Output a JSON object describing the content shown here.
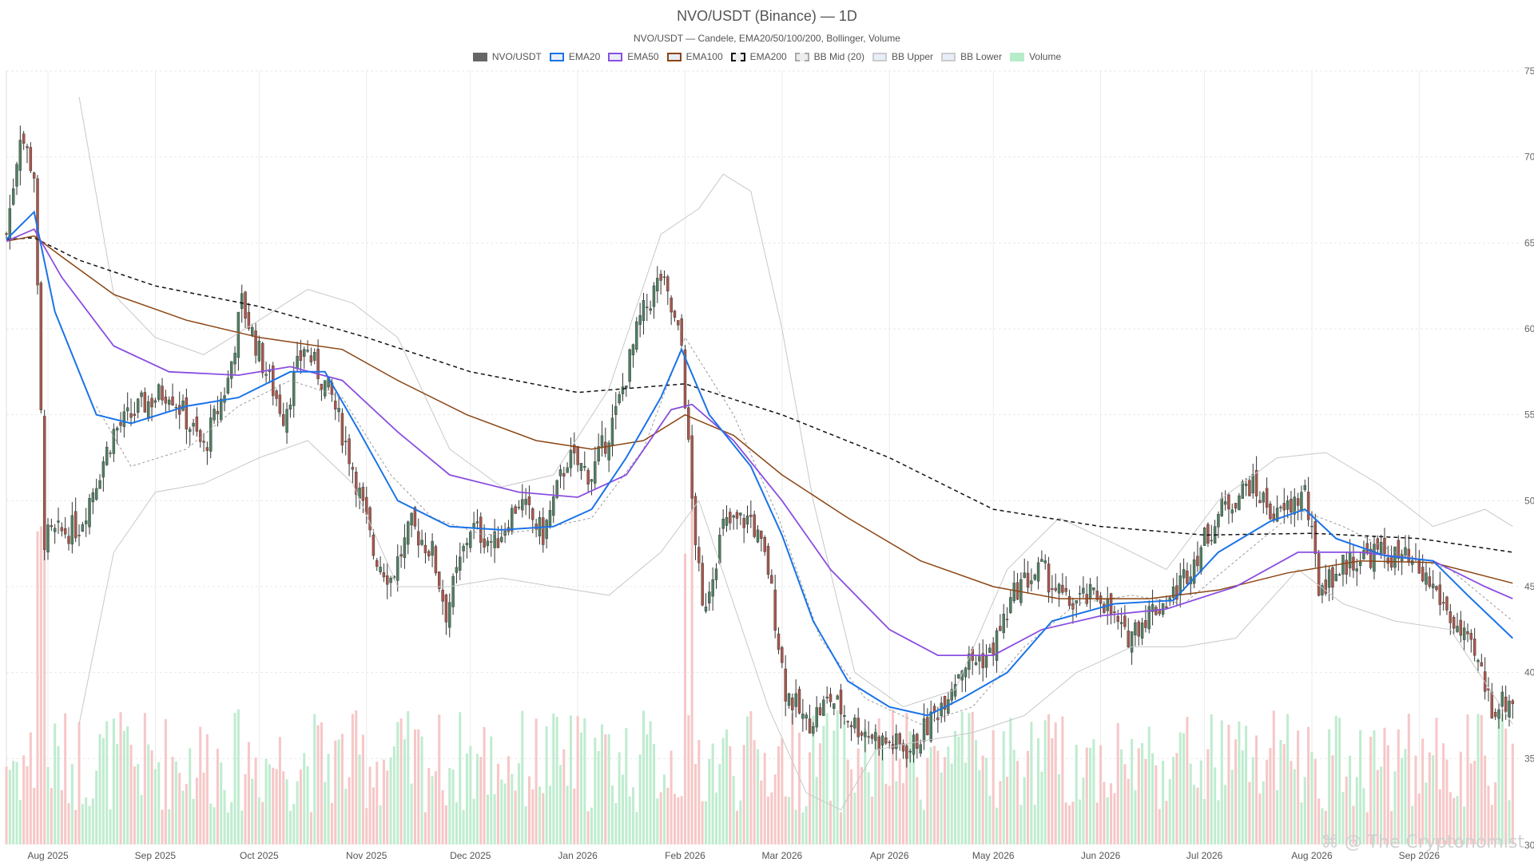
{
  "chart_title": "NVO/USDT (Binance) — 1D",
  "chart_subtitle": "NVO/USDT — Candele, EMA20/50/100/200, Bollinger, Volume",
  "watermark": "⌘ @ The Cryptonomist",
  "legend": [
    {
      "label": "NVO/USDT",
      "color": "#666666",
      "style": "solid-fill"
    },
    {
      "label": "EMA20",
      "color": "#1a73e8",
      "style": "line"
    },
    {
      "label": "EMA50",
      "color": "#8a4fe0",
      "style": "line"
    },
    {
      "label": "EMA100",
      "color": "#8b4513",
      "style": "line"
    },
    {
      "label": "EMA200",
      "color": "#111111",
      "style": "dashed"
    },
    {
      "label": "BB Mid (20)",
      "color": "#aaaaaa",
      "style": "dashed"
    },
    {
      "label": "BB Upper",
      "color": "#cccccc",
      "style": "line"
    },
    {
      "label": "BB Lower",
      "color": "#cccccc",
      "style": "line"
    },
    {
      "label": "Volume",
      "color": "#b6ecc8",
      "style": "solid-fill"
    }
  ],
  "chart_data": {
    "type": "candlestick",
    "y_axis": {
      "position": "right",
      "min": 30,
      "max": 75,
      "ticks": [
        35,
        40,
        45,
        50,
        55,
        60,
        65,
        70,
        75
      ]
    },
    "x_axis": {
      "ticks": [
        "Aug 2025",
        "Sep 2025",
        "Oct 2025",
        "Nov 2025",
        "Dec 2025",
        "Jan 2026",
        "Feb 2026",
        "Mar 2026",
        "Apr 2026",
        "May 2026",
        "Jun 2026",
        "Jul 2026",
        "Aug 2026",
        "Sep 2026"
      ]
    },
    "grid": true,
    "colors": {
      "up": "#4f7f61",
      "down": "#a8574c",
      "vol_up": "#bfeccf",
      "vol_down": "#f6c7c7"
    },
    "price_path": [
      {
        "x": "2025-07-20",
        "y": 65.5
      },
      {
        "x": "2025-07-24",
        "y": 71.5
      },
      {
        "x": "2025-07-28",
        "y": 69
      },
      {
        "x": "2025-07-31",
        "y": 47.8
      },
      {
        "x": "2025-08-10",
        "y": 48.5
      },
      {
        "x": "2025-08-20",
        "y": 54
      },
      {
        "x": "2025-08-28",
        "y": 55.5
      },
      {
        "x": "2025-09-05",
        "y": 56.5
      },
      {
        "x": "2025-09-15",
        "y": 53
      },
      {
        "x": "2025-09-22",
        "y": 57
      },
      {
        "x": "2025-09-26",
        "y": 61.5
      },
      {
        "x": "2025-10-02",
        "y": 58
      },
      {
        "x": "2025-10-08",
        "y": 55
      },
      {
        "x": "2025-10-14",
        "y": 59
      },
      {
        "x": "2025-10-22",
        "y": 56
      },
      {
        "x": "2025-10-28",
        "y": 52
      },
      {
        "x": "2025-11-03",
        "y": 47
      },
      {
        "x": "2025-11-08",
        "y": 45.5
      },
      {
        "x": "2025-11-14",
        "y": 48.5
      },
      {
        "x": "2025-11-20",
        "y": 47
      },
      {
        "x": "2025-11-24",
        "y": 43.5
      },
      {
        "x": "2025-12-01",
        "y": 48.5
      },
      {
        "x": "2025-12-08",
        "y": 47.5
      },
      {
        "x": "2025-12-15",
        "y": 50
      },
      {
        "x": "2025-12-22",
        "y": 48
      },
      {
        "x": "2025-12-29",
        "y": 52.5
      },
      {
        "x": "2026-01-05",
        "y": 51.5
      },
      {
        "x": "2026-01-12",
        "y": 55
      },
      {
        "x": "2026-01-19",
        "y": 60.5
      },
      {
        "x": "2026-01-25",
        "y": 63
      },
      {
        "x": "2026-01-31",
        "y": 59
      },
      {
        "x": "2026-02-03",
        "y": 50
      },
      {
        "x": "2026-02-06",
        "y": 43.5
      },
      {
        "x": "2026-02-12",
        "y": 48.5
      },
      {
        "x": "2026-02-20",
        "y": 49
      },
      {
        "x": "2026-02-25",
        "y": 46
      },
      {
        "x": "2026-03-02",
        "y": 39
      },
      {
        "x": "2026-03-08",
        "y": 37
      },
      {
        "x": "2026-03-15",
        "y": 38.5
      },
      {
        "x": "2026-03-22",
        "y": 37
      },
      {
        "x": "2026-03-30",
        "y": 36
      },
      {
        "x": "2026-04-07",
        "y": 35.5
      },
      {
        "x": "2026-04-14",
        "y": 37.5
      },
      {
        "x": "2026-04-22",
        "y": 40.5
      },
      {
        "x": "2026-04-30",
        "y": 41
      },
      {
        "x": "2026-05-08",
        "y": 45
      },
      {
        "x": "2026-05-15",
        "y": 46
      },
      {
        "x": "2026-05-22",
        "y": 44
      },
      {
        "x": "2026-06-01",
        "y": 44.5
      },
      {
        "x": "2026-06-08",
        "y": 42
      },
      {
        "x": "2026-06-15",
        "y": 43.5
      },
      {
        "x": "2026-06-22",
        "y": 44.5
      },
      {
        "x": "2026-06-29",
        "y": 47
      },
      {
        "x": "2026-07-06",
        "y": 49.5
      },
      {
        "x": "2026-07-14",
        "y": 51
      },
      {
        "x": "2026-07-22",
        "y": 49
      },
      {
        "x": "2026-07-30",
        "y": 50.5
      },
      {
        "x": "2026-08-03",
        "y": 45
      },
      {
        "x": "2026-08-12",
        "y": 46.5
      },
      {
        "x": "2026-08-20",
        "y": 47
      },
      {
        "x": "2026-08-28",
        "y": 46.5
      },
      {
        "x": "2026-09-05",
        "y": 45
      },
      {
        "x": "2026-09-12",
        "y": 42.5
      },
      {
        "x": "2026-09-18",
        "y": 40.5
      },
      {
        "x": "2026-09-22",
        "y": 38
      },
      {
        "x": "2026-09-28",
        "y": 38.5
      }
    ],
    "ema20": [
      {
        "x": "2025-07-20",
        "y": 65.2
      },
      {
        "x": "2025-07-28",
        "y": 66.8
      },
      {
        "x": "2025-08-03",
        "y": 61
      },
      {
        "x": "2025-08-15",
        "y": 55
      },
      {
        "x": "2025-08-25",
        "y": 54.5
      },
      {
        "x": "2025-09-10",
        "y": 55.5
      },
      {
        "x": "2025-09-25",
        "y": 56
      },
      {
        "x": "2025-10-10",
        "y": 57.5
      },
      {
        "x": "2025-10-20",
        "y": 57.5
      },
      {
        "x": "2025-10-30",
        "y": 54
      },
      {
        "x": "2025-11-10",
        "y": 50
      },
      {
        "x": "2025-11-25",
        "y": 48.5
      },
      {
        "x": "2025-12-10",
        "y": 48.3
      },
      {
        "x": "2025-12-25",
        "y": 48.5
      },
      {
        "x": "2026-01-05",
        "y": 49.5
      },
      {
        "x": "2026-01-15",
        "y": 52.5
      },
      {
        "x": "2026-01-25",
        "y": 56
      },
      {
        "x": "2026-01-31",
        "y": 58.8
      },
      {
        "x": "2026-02-08",
        "y": 55
      },
      {
        "x": "2026-02-20",
        "y": 52
      },
      {
        "x": "2026-03-01",
        "y": 48
      },
      {
        "x": "2026-03-10",
        "y": 43
      },
      {
        "x": "2026-03-20",
        "y": 39.5
      },
      {
        "x": "2026-04-01",
        "y": 38
      },
      {
        "x": "2026-04-12",
        "y": 37.5
      },
      {
        "x": "2026-04-22",
        "y": 38.5
      },
      {
        "x": "2026-05-05",
        "y": 40
      },
      {
        "x": "2026-05-18",
        "y": 43
      },
      {
        "x": "2026-06-05",
        "y": 44
      },
      {
        "x": "2026-06-22",
        "y": 44.2
      },
      {
        "x": "2026-07-05",
        "y": 47
      },
      {
        "x": "2026-07-20",
        "y": 48.8
      },
      {
        "x": "2026-07-30",
        "y": 49.5
      },
      {
        "x": "2026-08-08",
        "y": 47.8
      },
      {
        "x": "2026-08-22",
        "y": 46.8
      },
      {
        "x": "2026-09-05",
        "y": 46.5
      },
      {
        "x": "2026-09-15",
        "y": 44.5
      },
      {
        "x": "2026-09-28",
        "y": 42
      }
    ],
    "ema50": [
      {
        "x": "2025-07-20",
        "y": 65.1
      },
      {
        "x": "2025-07-28",
        "y": 65.8
      },
      {
        "x": "2025-08-05",
        "y": 63
      },
      {
        "x": "2025-08-20",
        "y": 59
      },
      {
        "x": "2025-09-05",
        "y": 57.5
      },
      {
        "x": "2025-09-25",
        "y": 57.3
      },
      {
        "x": "2025-10-10",
        "y": 57.8
      },
      {
        "x": "2025-10-25",
        "y": 57
      },
      {
        "x": "2025-11-10",
        "y": 54
      },
      {
        "x": "2025-11-25",
        "y": 51.5
      },
      {
        "x": "2025-12-15",
        "y": 50.5
      },
      {
        "x": "2026-01-01",
        "y": 50.2
      },
      {
        "x": "2026-01-15",
        "y": 51.5
      },
      {
        "x": "2026-01-28",
        "y": 55.3
      },
      {
        "x": "2026-02-03",
        "y": 55.6
      },
      {
        "x": "2026-02-15",
        "y": 53.5
      },
      {
        "x": "2026-03-01",
        "y": 50
      },
      {
        "x": "2026-03-15",
        "y": 46
      },
      {
        "x": "2026-04-01",
        "y": 42.5
      },
      {
        "x": "2026-04-15",
        "y": 41
      },
      {
        "x": "2026-05-01",
        "y": 41
      },
      {
        "x": "2026-05-15",
        "y": 42.5
      },
      {
        "x": "2026-06-01",
        "y": 43.3
      },
      {
        "x": "2026-06-20",
        "y": 43.7
      },
      {
        "x": "2026-07-10",
        "y": 45
      },
      {
        "x": "2026-07-28",
        "y": 47
      },
      {
        "x": "2026-08-15",
        "y": 47
      },
      {
        "x": "2026-09-05",
        "y": 46.5
      },
      {
        "x": "2026-09-20",
        "y": 45
      },
      {
        "x": "2026-09-28",
        "y": 44.3
      }
    ],
    "ema100": [
      {
        "x": "2025-07-20",
        "y": 65.1
      },
      {
        "x": "2025-07-28",
        "y": 65.4
      },
      {
        "x": "2025-08-05",
        "y": 64.2
      },
      {
        "x": "2025-08-20",
        "y": 62
      },
      {
        "x": "2025-09-10",
        "y": 60.5
      },
      {
        "x": "2025-10-01",
        "y": 59.5
      },
      {
        "x": "2025-10-25",
        "y": 58.8
      },
      {
        "x": "2025-11-10",
        "y": 57
      },
      {
        "x": "2025-11-30",
        "y": 55
      },
      {
        "x": "2025-12-20",
        "y": 53.5
      },
      {
        "x": "2026-01-05",
        "y": 53
      },
      {
        "x": "2026-01-20",
        "y": 53.5
      },
      {
        "x": "2026-02-01",
        "y": 55
      },
      {
        "x": "2026-02-15",
        "y": 53.8
      },
      {
        "x": "2026-03-01",
        "y": 51.5
      },
      {
        "x": "2026-03-20",
        "y": 49
      },
      {
        "x": "2026-04-10",
        "y": 46.5
      },
      {
        "x": "2026-05-01",
        "y": 45
      },
      {
        "x": "2026-05-20",
        "y": 44.3
      },
      {
        "x": "2026-06-15",
        "y": 44.3
      },
      {
        "x": "2026-07-05",
        "y": 44.8
      },
      {
        "x": "2026-07-25",
        "y": 45.8
      },
      {
        "x": "2026-08-15",
        "y": 46.5
      },
      {
        "x": "2026-09-05",
        "y": 46.4
      },
      {
        "x": "2026-09-28",
        "y": 45.2
      }
    ],
    "ema200": [
      {
        "x": "2025-07-20",
        "y": 65.2
      },
      {
        "x": "2025-07-28",
        "y": 65.3
      },
      {
        "x": "2025-08-10",
        "y": 64
      },
      {
        "x": "2025-09-01",
        "y": 62.5
      },
      {
        "x": "2025-10-01",
        "y": 61.3
      },
      {
        "x": "2025-11-01",
        "y": 59.5
      },
      {
        "x": "2025-12-01",
        "y": 57.5
      },
      {
        "x": "2026-01-01",
        "y": 56.3
      },
      {
        "x": "2026-02-01",
        "y": 56.8
      },
      {
        "x": "2026-03-01",
        "y": 55
      },
      {
        "x": "2026-04-01",
        "y": 52.5
      },
      {
        "x": "2026-05-01",
        "y": 49.5
      },
      {
        "x": "2026-06-01",
        "y": 48.5
      },
      {
        "x": "2026-07-01",
        "y": 48
      },
      {
        "x": "2026-08-01",
        "y": 48.1
      },
      {
        "x": "2026-09-01",
        "y": 47.8
      },
      {
        "x": "2026-09-28",
        "y": 47
      }
    ],
    "bb_mid": [
      {
        "x": "2025-08-15",
        "y": 55.5
      },
      {
        "x": "2025-08-25",
        "y": 52
      },
      {
        "x": "2025-09-10",
        "y": 53
      },
      {
        "x": "2025-09-25",
        "y": 55.5
      },
      {
        "x": "2025-10-10",
        "y": 57
      },
      {
        "x": "2025-10-25",
        "y": 56
      },
      {
        "x": "2025-11-08",
        "y": 51.5
      },
      {
        "x": "2025-11-20",
        "y": 49
      },
      {
        "x": "2025-12-05",
        "y": 48
      },
      {
        "x": "2025-12-20",
        "y": 48.3
      },
      {
        "x": "2026-01-05",
        "y": 49
      },
      {
        "x": "2026-01-20",
        "y": 53
      },
      {
        "x": "2026-02-01",
        "y": 59.5
      },
      {
        "x": "2026-02-15",
        "y": 55
      },
      {
        "x": "2026-02-28",
        "y": 49
      },
      {
        "x": "2026-03-12",
        "y": 42
      },
      {
        "x": "2026-03-25",
        "y": 38.5
      },
      {
        "x": "2026-04-10",
        "y": 37
      },
      {
        "x": "2026-04-25",
        "y": 38
      },
      {
        "x": "2026-05-10",
        "y": 41.5
      },
      {
        "x": "2026-05-25",
        "y": 44
      },
      {
        "x": "2026-06-10",
        "y": 44.5
      },
      {
        "x": "2026-06-25",
        "y": 44
      },
      {
        "x": "2026-07-10",
        "y": 46.5
      },
      {
        "x": "2026-07-28",
        "y": 49.5
      },
      {
        "x": "2026-08-10",
        "y": 48.5
      },
      {
        "x": "2026-08-25",
        "y": 47
      },
      {
        "x": "2026-09-10",
        "y": 46
      },
      {
        "x": "2026-09-28",
        "y": 43
      }
    ],
    "bb_upper": [
      {
        "x": "2025-08-10",
        "y": 73.5
      },
      {
        "x": "2025-08-20",
        "y": 62
      },
      {
        "x": "2025-09-01",
        "y": 59.5
      },
      {
        "x": "2025-09-15",
        "y": 58.5
      },
      {
        "x": "2025-10-01",
        "y": 60.5
      },
      {
        "x": "2025-10-15",
        "y": 62.3
      },
      {
        "x": "2025-10-28",
        "y": 61.5
      },
      {
        "x": "2025-11-10",
        "y": 59.5
      },
      {
        "x": "2025-11-25",
        "y": 53
      },
      {
        "x": "2025-12-10",
        "y": 50.8
      },
      {
        "x": "2025-12-25",
        "y": 51.5
      },
      {
        "x": "2026-01-10",
        "y": 56.5
      },
      {
        "x": "2026-01-25",
        "y": 65.5
      },
      {
        "x": "2026-02-05",
        "y": 67
      },
      {
        "x": "2026-02-12",
        "y": 69
      },
      {
        "x": "2026-02-20",
        "y": 68
      },
      {
        "x": "2026-03-01",
        "y": 60
      },
      {
        "x": "2026-03-10",
        "y": 50
      },
      {
        "x": "2026-03-22",
        "y": 40
      },
      {
        "x": "2026-04-05",
        "y": 38
      },
      {
        "x": "2026-04-20",
        "y": 39
      },
      {
        "x": "2026-05-05",
        "y": 46
      },
      {
        "x": "2026-05-20",
        "y": 49
      },
      {
        "x": "2026-06-05",
        "y": 47.5
      },
      {
        "x": "2026-06-20",
        "y": 46
      },
      {
        "x": "2026-07-05",
        "y": 50
      },
      {
        "x": "2026-07-22",
        "y": 52.5
      },
      {
        "x": "2026-08-05",
        "y": 52.8
      },
      {
        "x": "2026-08-20",
        "y": 51
      },
      {
        "x": "2026-09-05",
        "y": 48.5
      },
      {
        "x": "2026-09-20",
        "y": 49.5
      },
      {
        "x": "2026-09-28",
        "y": 48.5
      }
    ],
    "bb_lower": [
      {
        "x": "2025-08-10",
        "y": 37
      },
      {
        "x": "2025-08-20",
        "y": 47
      },
      {
        "x": "2025-09-01",
        "y": 50.5
      },
      {
        "x": "2025-09-15",
        "y": 51
      },
      {
        "x": "2025-10-01",
        "y": 52.5
      },
      {
        "x": "2025-10-15",
        "y": 53.5
      },
      {
        "x": "2025-10-28",
        "y": 51
      },
      {
        "x": "2025-11-10",
        "y": 45
      },
      {
        "x": "2025-11-25",
        "y": 45
      },
      {
        "x": "2025-12-10",
        "y": 45.5
      },
      {
        "x": "2025-12-25",
        "y": 45
      },
      {
        "x": "2026-01-10",
        "y": 44.5
      },
      {
        "x": "2026-01-25",
        "y": 47
      },
      {
        "x": "2026-02-05",
        "y": 50
      },
      {
        "x": "2026-02-15",
        "y": 44
      },
      {
        "x": "2026-02-25",
        "y": 38
      },
      {
        "x": "2026-03-08",
        "y": 33
      },
      {
        "x": "2026-03-18",
        "y": 32
      },
      {
        "x": "2026-03-28",
        "y": 35.5
      },
      {
        "x": "2026-04-10",
        "y": 36
      },
      {
        "x": "2026-04-25",
        "y": 36.5
      },
      {
        "x": "2026-05-10",
        "y": 37.5
      },
      {
        "x": "2026-05-25",
        "y": 40
      },
      {
        "x": "2026-06-10",
        "y": 41.5
      },
      {
        "x": "2026-06-25",
        "y": 41.5
      },
      {
        "x": "2026-07-10",
        "y": 42
      },
      {
        "x": "2026-07-28",
        "y": 46
      },
      {
        "x": "2026-08-10",
        "y": 44
      },
      {
        "x": "2026-08-25",
        "y": 43
      },
      {
        "x": "2026-09-10",
        "y": 42.5
      },
      {
        "x": "2026-09-28",
        "y": 37
      }
    ]
  }
}
